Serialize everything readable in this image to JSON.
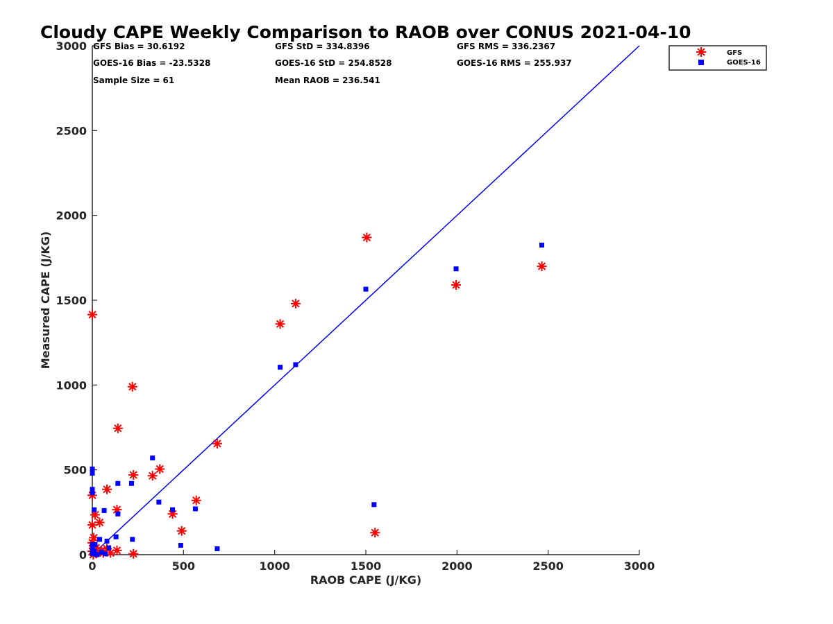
{
  "chart_data": {
    "type": "scatter",
    "title": "Cloudy CAPE Weekly Comparison to RAOB over CONUS 2021-04-10",
    "xlabel": "RAOB CAPE (J/KG)",
    "ylabel": "Measured CAPE (J/KG)",
    "xlim": [
      0,
      3000
    ],
    "ylim": [
      0,
      3000
    ],
    "x_ticks": [
      0,
      500,
      1000,
      1500,
      2000,
      2500,
      3000
    ],
    "y_ticks": [
      0,
      500,
      1000,
      1500,
      2000,
      2500,
      3000
    ],
    "x_tick_labels": [
      "0",
      "500",
      "1000",
      "1500",
      "2000",
      "2500",
      "3000"
    ],
    "y_tick_labels": [
      "0",
      "500",
      "1000",
      "1500",
      "2000",
      "2500",
      "3000"
    ],
    "grid": false,
    "legend_position": "top-right",
    "stats": {
      "gfs_bias": "GFS Bias = 30.6192",
      "goes_bias": "GOES-16 Bias = -23.5328",
      "sample_size": "Sample Size = 61",
      "gfs_std": "GFS StD = 334.8396",
      "goes_std": "GOES-16 StD = 254.8528",
      "mean_raob": "Mean RAOB = 236.541",
      "gfs_rms": "GFS RMS = 336.2367",
      "goes_rms": "GOES-16 RMS = 255.937"
    },
    "reference_line": {
      "x": [
        0,
        3000
      ],
      "y": [
        0,
        3000
      ],
      "color": "#0000ff"
    },
    "series": [
      {
        "name": "GFS",
        "marker": "asterisk",
        "color": "#ff0000",
        "points": [
          [
            0,
            1415
          ],
          [
            0,
            350
          ],
          [
            0,
            175
          ],
          [
            0,
            70
          ],
          [
            0,
            20
          ],
          [
            5,
            0
          ],
          [
            8,
            100
          ],
          [
            15,
            235
          ],
          [
            20,
            40
          ],
          [
            25,
            10
          ],
          [
            40,
            190
          ],
          [
            50,
            25
          ],
          [
            60,
            10
          ],
          [
            80,
            385
          ],
          [
            80,
            35
          ],
          [
            100,
            10
          ],
          [
            135,
            265
          ],
          [
            135,
            25
          ],
          [
            140,
            745
          ],
          [
            220,
            990
          ],
          [
            225,
            470
          ],
          [
            225,
            5
          ],
          [
            330,
            465
          ],
          [
            370,
            505
          ],
          [
            440,
            240
          ],
          [
            490,
            140
          ],
          [
            570,
            320
          ],
          [
            685,
            655
          ],
          [
            1030,
            1360
          ],
          [
            1115,
            1480
          ],
          [
            1505,
            1870
          ],
          [
            1550,
            130
          ],
          [
            1995,
            1590
          ],
          [
            2465,
            1700
          ]
        ]
      },
      {
        "name": "GOES-16",
        "marker": "square",
        "color": "#0000ff",
        "points": [
          [
            0,
            505
          ],
          [
            0,
            480
          ],
          [
            0,
            385
          ],
          [
            0,
            365
          ],
          [
            0,
            60
          ],
          [
            0,
            40
          ],
          [
            0,
            20
          ],
          [
            0,
            5
          ],
          [
            10,
            265
          ],
          [
            10,
            20
          ],
          [
            15,
            60
          ],
          [
            25,
            0
          ],
          [
            40,
            90
          ],
          [
            50,
            15
          ],
          [
            65,
            260
          ],
          [
            70,
            5
          ],
          [
            80,
            80
          ],
          [
            90,
            40
          ],
          [
            130,
            105
          ],
          [
            140,
            420
          ],
          [
            140,
            240
          ],
          [
            215,
            420
          ],
          [
            220,
            90
          ],
          [
            330,
            570
          ],
          [
            365,
            310
          ],
          [
            440,
            265
          ],
          [
            485,
            55
          ],
          [
            565,
            270
          ],
          [
            685,
            35
          ],
          [
            1030,
            1105
          ],
          [
            1115,
            1120
          ],
          [
            1500,
            1565
          ],
          [
            1545,
            295
          ],
          [
            1995,
            1685
          ],
          [
            2465,
            1825
          ]
        ]
      }
    ]
  }
}
